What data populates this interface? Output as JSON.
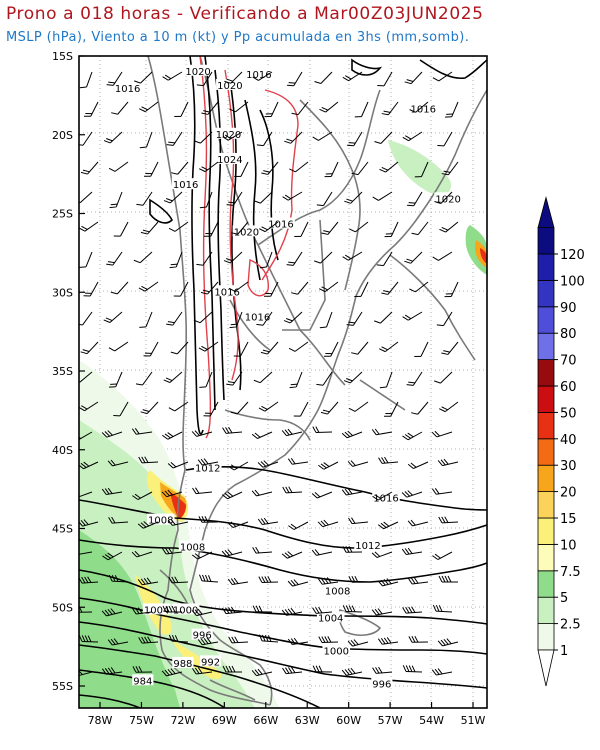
{
  "title_line1": "Prono a 018 horas - Verificando a Mar00Z03JUN2025",
  "title_line2": "MSLP (hPa), Viento a 10 m (kt) y Pp acumulada en 3hs (mm,somb).",
  "lat_ticks": [
    "15S",
    "20S",
    "25S",
    "30S",
    "35S",
    "40S",
    "45S",
    "50S",
    "55S"
  ],
  "lon_ticks": [
    "78W",
    "75W",
    "72W",
    "69W",
    "66W",
    "63W",
    "60W",
    "57W",
    "54W",
    "51W"
  ],
  "colorbar": {
    "labels": [
      "1",
      "2.5",
      "5",
      "7.5",
      "10",
      "15",
      "20",
      "30",
      "40",
      "50",
      "60",
      "70",
      "80",
      "90",
      "100",
      "120"
    ],
    "colors": [
      "#eef9ea",
      "#c9f0c1",
      "#8fdc8a",
      "#fdfcb8",
      "#fbf07a",
      "#fbd35a",
      "#f7a61c",
      "#f46b14",
      "#e83015",
      "#cc0d12",
      "#960a10",
      "#6f6fe8",
      "#4e4ed8",
      "#3434c2",
      "#1e1ea8",
      "#0c0c80"
    ]
  },
  "isobar_labels": [
    {
      "text": "1016",
      "lat": 16.2,
      "lon": 66.5
    },
    {
      "text": "1016",
      "lat": 17.1,
      "lon": 76.0
    },
    {
      "text": "1020",
      "lat": 16.0,
      "lon": 70.9
    },
    {
      "text": "1020",
      "lat": 16.9,
      "lon": 68.6
    },
    {
      "text": "1016",
      "lat": 18.4,
      "lon": 54.6
    },
    {
      "text": "1020",
      "lat": 20.0,
      "lon": 68.7
    },
    {
      "text": "1024",
      "lat": 21.6,
      "lon": 68.6
    },
    {
      "text": "1016",
      "lat": 23.2,
      "lon": 71.8
    },
    {
      "text": "1020",
      "lat": 24.1,
      "lon": 52.8
    },
    {
      "text": "1016",
      "lat": 25.7,
      "lon": 64.9
    },
    {
      "text": "1020",
      "lat": 26.2,
      "lon": 67.4
    },
    {
      "text": "1016",
      "lat": 30.0,
      "lon": 68.8
    },
    {
      "text": "1016",
      "lat": 31.6,
      "lon": 66.6
    },
    {
      "text": "1012",
      "lat": 41.2,
      "lon": 70.2
    },
    {
      "text": "1016",
      "lat": 43.1,
      "lon": 57.3
    },
    {
      "text": "1008",
      "lat": 44.5,
      "lon": 73.6
    },
    {
      "text": "1012",
      "lat": 46.1,
      "lon": 58.6
    },
    {
      "text": "1008",
      "lat": 46.2,
      "lon": 71.3
    },
    {
      "text": "1008",
      "lat": 49.0,
      "lon": 60.8
    },
    {
      "text": "1004",
      "lat": 50.2,
      "lon": 73.9
    },
    {
      "text": "1000",
      "lat": 50.2,
      "lon": 71.8
    },
    {
      "text": "1004",
      "lat": 50.7,
      "lon": 61.3
    },
    {
      "text": "996",
      "lat": 51.8,
      "lon": 70.6
    },
    {
      "text": "1000",
      "lat": 52.8,
      "lon": 60.9
    },
    {
      "text": "988",
      "lat": 53.6,
      "lon": 72.0
    },
    {
      "text": "992",
      "lat": 53.5,
      "lon": 70.0
    },
    {
      "text": "984",
      "lat": 54.7,
      "lon": 74.9
    },
    {
      "text": "996",
      "lat": 54.9,
      "lon": 57.6
    }
  ]
}
